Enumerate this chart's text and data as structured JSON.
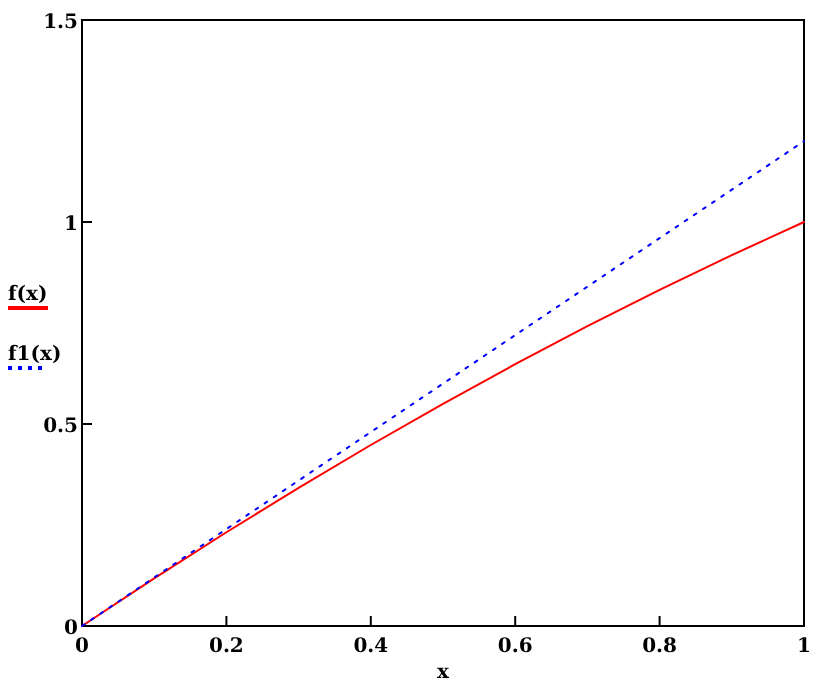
{
  "chart_data": {
    "type": "line",
    "xlabel": "x",
    "x": [
      0,
      0.1,
      0.2,
      0.3,
      0.4,
      0.5,
      0.6,
      0.7,
      0.8,
      0.9,
      1
    ],
    "series": [
      {
        "name": "f(x)",
        "color": "#ff0000",
        "line_style": "solid",
        "values": [
          0,
          0.118,
          0.232,
          0.342,
          0.448,
          0.55,
          0.648,
          0.742,
          0.832,
          0.918,
          1
        ]
      },
      {
        "name": "f1(x)",
        "color": "#0000ff",
        "line_style": "dotted",
        "values": [
          0,
          0.12,
          0.24,
          0.36,
          0.48,
          0.6,
          0.72,
          0.84,
          0.96,
          1.08,
          1.2
        ]
      }
    ],
    "xlim": [
      0,
      1
    ],
    "ylim": [
      0,
      1.5
    ],
    "xticks": [
      0,
      0.2,
      0.4,
      0.6,
      0.8,
      1
    ],
    "yticks": [
      0,
      0.5,
      1,
      1.5
    ],
    "legend": "left",
    "grid": false,
    "marker": "none"
  }
}
